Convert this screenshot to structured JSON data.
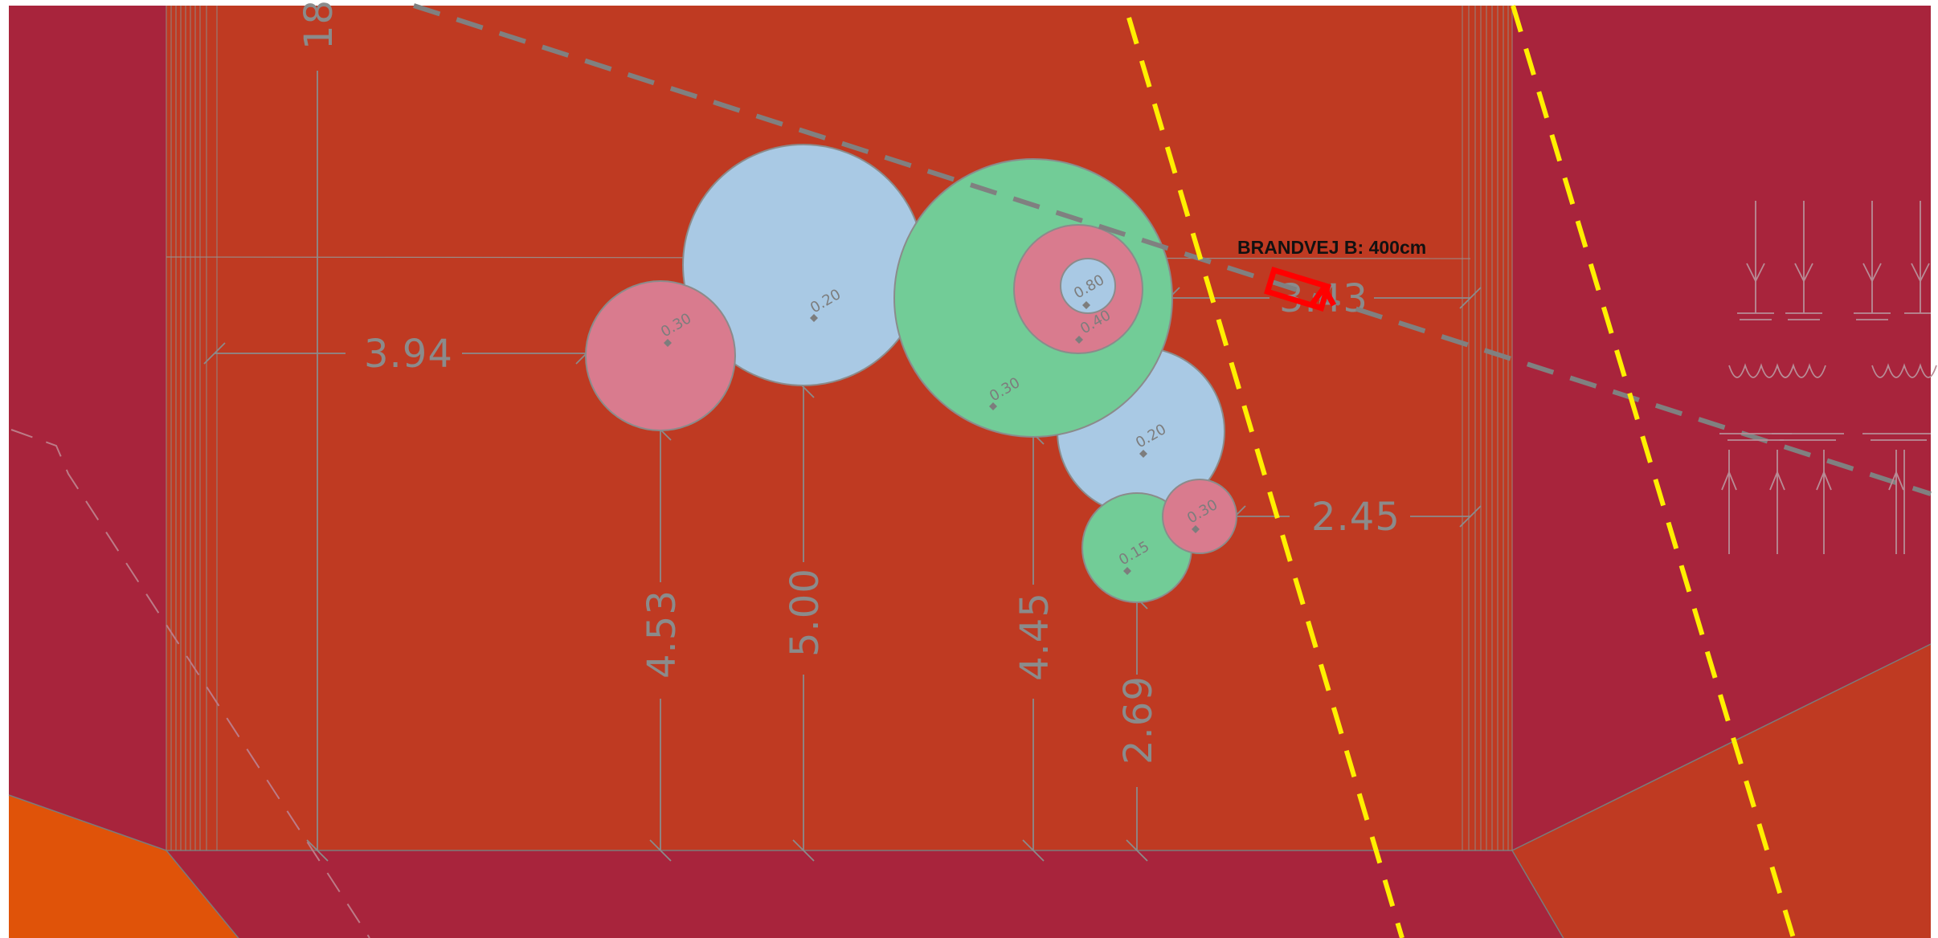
{
  "fire_lane": {
    "label": "BRANDVEJ B: 400cm"
  },
  "dimensions": {
    "top_left": "18",
    "left": "3.94",
    "right_upper": "3.43",
    "right_lower": "2.45",
    "v1": "4.53",
    "v2": "5.00",
    "v3": "4.45",
    "v4": "2.69"
  },
  "circles": [
    {
      "kind": "light-blue",
      "label": "0.20"
    },
    {
      "kind": "pink",
      "label": "0.30"
    },
    {
      "kind": "green",
      "label": "0.30"
    },
    {
      "kind": "pink",
      "label": "0.40"
    },
    {
      "kind": "light-blue",
      "label": "0.80"
    },
    {
      "kind": "light-blue",
      "label": "0.20"
    },
    {
      "kind": "pink",
      "label": "0.30"
    },
    {
      "kind": "green",
      "label": "0.15"
    }
  ],
  "colors": {
    "courtyard": "#bf3a22",
    "surround": "#a8243c",
    "orange_area": "#e05309",
    "pink": "#d97b8e",
    "light_blue": "#a9c9e4",
    "green": "#72cc97",
    "fire_lane_line": "#ffef00",
    "property_line": "#808080",
    "marker": "#ff0000"
  }
}
